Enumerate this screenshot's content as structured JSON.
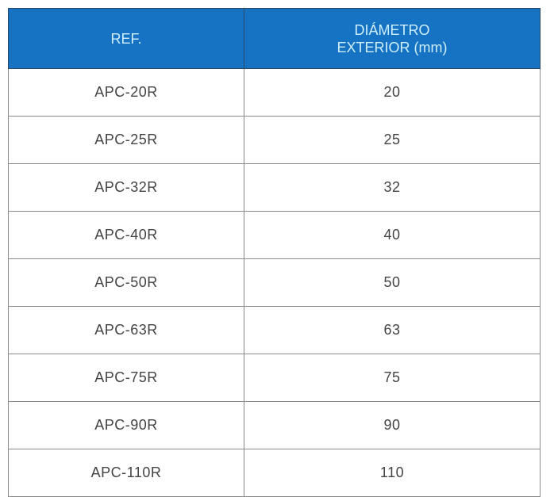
{
  "table": {
    "headers": [
      "REF.",
      "DIÁMETRO",
      "EXTERIOR (mm)"
    ],
    "rows": [
      [
        "APC-20R",
        "20"
      ],
      [
        "APC-25R",
        "25"
      ],
      [
        "APC-32R",
        "32"
      ],
      [
        "APC-40R",
        "40"
      ],
      [
        "APC-50R",
        "50"
      ],
      [
        "APC-63R",
        "63"
      ],
      [
        "APC-75R",
        "75"
      ],
      [
        "APC-90R",
        "90"
      ],
      [
        "APC-110R",
        "110"
      ]
    ],
    "header_color": "#1673c4"
  }
}
